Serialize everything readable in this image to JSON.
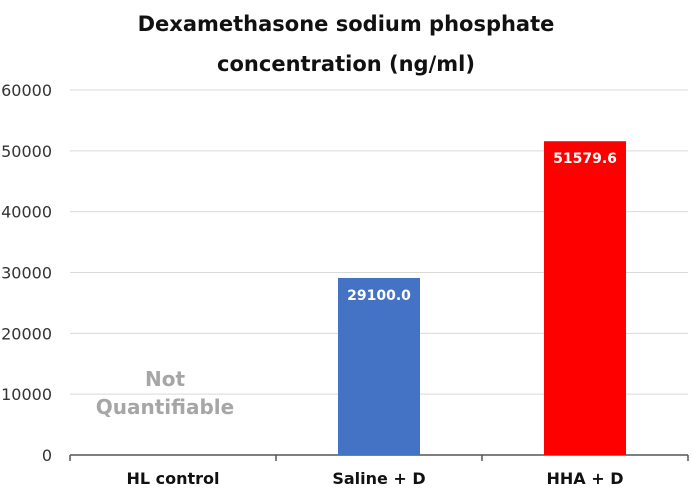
{
  "chart_data": {
    "type": "bar",
    "title_lines": [
      "Dexamethasone sodium phosphate",
      "concentration (ng/ml)"
    ],
    "categories": [
      "HL control",
      "Saline + D",
      "HHA + D"
    ],
    "values": [
      null,
      29100.0,
      51579.6
    ],
    "value_labels": [
      "",
      "29100.0",
      "51579.6"
    ],
    "bar_colors": [
      "#ffffff",
      "#4472c4",
      "#ff0000"
    ],
    "annotation": [
      "Not",
      "Quantifiable"
    ],
    "annotation_color": "#a6a6a6",
    "ylim": [
      0,
      60000
    ],
    "yticks": [
      0,
      10000,
      20000,
      30000,
      40000,
      50000,
      60000
    ],
    "ytick_labels": [
      "0",
      "10000",
      "20000",
      "30000",
      "40000",
      "50000",
      "60000"
    ],
    "grid": true,
    "legend": "none"
  }
}
